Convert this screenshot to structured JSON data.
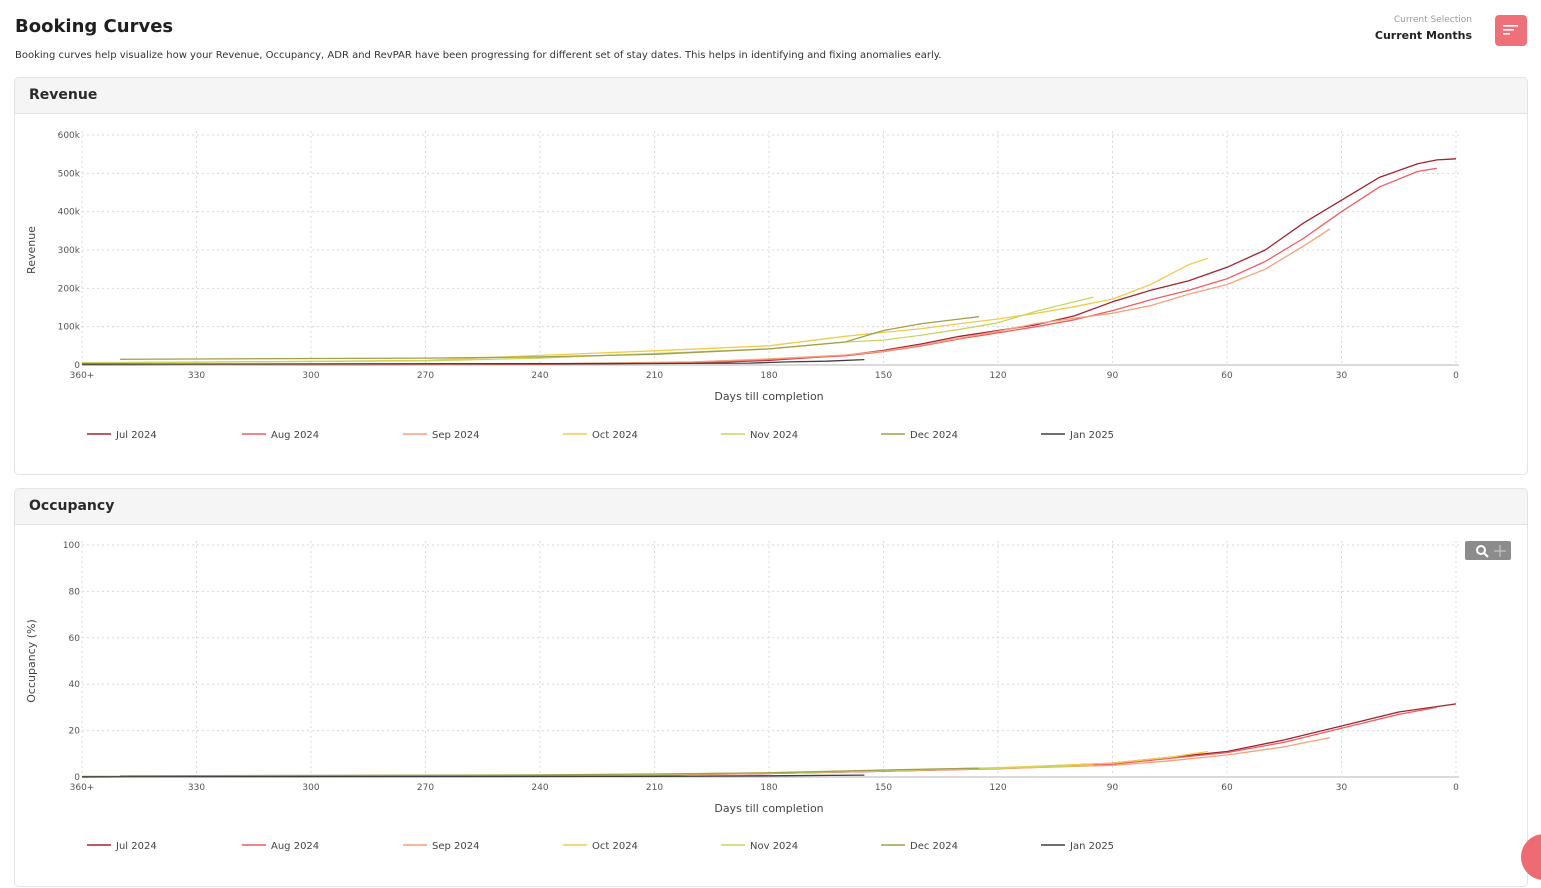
{
  "page": {
    "title": "Booking Curves",
    "subtitle": "Booking curves help visualize how your Revenue, Occupancy, ADR and RevPAR have been progressing for different set of stay dates. This helps in identifying and fixing anomalies early.",
    "selection_label": "Current Selection",
    "selection_value": "Current Months",
    "filter_icon": "filter-lines-icon"
  },
  "colors": {
    "Jul 2024": "#a3222e",
    "Aug 2024": "#ee5d63",
    "Sep 2024": "#f7a07a",
    "Oct 2024": "#f2cb4c",
    "Nov 2024": "#c7d560",
    "Dec 2024": "#9ea04a",
    "Jan 2025": "#3f3f3f"
  },
  "chart_data": [
    {
      "type": "line",
      "panel_title": "Revenue",
      "xlabel": "Days till completion",
      "ylabel": "Revenue",
      "x_ticks": [
        "360+",
        "330",
        "300",
        "270",
        "240",
        "210",
        "180",
        "150",
        "120",
        "90",
        "60",
        "30",
        "0"
      ],
      "y_ticks": [
        "0",
        "100k",
        "200k",
        "300k",
        "400k",
        "500k",
        "600k"
      ],
      "xlim": [
        360,
        0
      ],
      "ylim": [
        0,
        600000
      ],
      "grid": true,
      "legend_position": "bottom",
      "series": [
        {
          "name": "Jul 2024",
          "x": [
            360,
            240,
            200,
            180,
            160,
            150,
            140,
            130,
            120,
            110,
            100,
            90,
            80,
            70,
            60,
            50,
            40,
            30,
            20,
            10,
            5,
            0
          ],
          "y": [
            0,
            2000,
            5000,
            12000,
            25000,
            38000,
            55000,
            75000,
            90000,
            105000,
            128000,
            165000,
            195000,
            220000,
            255000,
            300000,
            370000,
            430000,
            490000,
            525000,
            535000,
            538000
          ]
        },
        {
          "name": "Aug 2024",
          "x": [
            360,
            240,
            200,
            180,
            160,
            150,
            140,
            130,
            120,
            110,
            100,
            90,
            80,
            70,
            60,
            50,
            40,
            30,
            20,
            10,
            5
          ],
          "y": [
            0,
            2000,
            6000,
            14000,
            24000,
            35000,
            50000,
            68000,
            84000,
            100000,
            118000,
            142000,
            170000,
            195000,
            225000,
            270000,
            330000,
            400000,
            465000,
            505000,
            513000
          ]
        },
        {
          "name": "Sep 2024",
          "x": [
            360,
            240,
            200,
            180,
            160,
            150,
            140,
            130,
            120,
            110,
            100,
            90,
            80,
            70,
            60,
            50,
            40,
            33
          ],
          "y": [
            0,
            3000,
            8000,
            16000,
            26000,
            36000,
            52000,
            70000,
            88000,
            108000,
            122000,
            135000,
            155000,
            185000,
            210000,
            250000,
            310000,
            355000
          ]
        },
        {
          "name": "Oct 2024",
          "x": [
            360,
            270,
            240,
            210,
            180,
            160,
            150,
            140,
            130,
            120,
            110,
            100,
            90,
            80,
            70,
            65
          ],
          "y": [
            5000,
            12000,
            25000,
            37000,
            50000,
            75000,
            85000,
            95000,
            108000,
            120000,
            135000,
            152000,
            172000,
            210000,
            262000,
            278000
          ]
        },
        {
          "name": "Nov 2024",
          "x": [
            360,
            270,
            240,
            210,
            180,
            160,
            150,
            140,
            130,
            120,
            110,
            100,
            95
          ],
          "y": [
            6000,
            11000,
            18000,
            30000,
            42000,
            60000,
            65000,
            78000,
            93000,
            110000,
            140000,
            165000,
            177000
          ]
        },
        {
          "name": "Dec 2024",
          "x": [
            350,
            270,
            240,
            210,
            180,
            160,
            150,
            140,
            130,
            125
          ],
          "y": [
            15000,
            18000,
            21000,
            28000,
            42000,
            60000,
            90000,
            108000,
            120000,
            126000
          ]
        },
        {
          "name": "Jan 2025",
          "x": [
            360,
            210,
            185,
            175,
            165,
            155
          ],
          "y": [
            2000,
            4000,
            5000,
            8000,
            10000,
            14000
          ]
        }
      ]
    },
    {
      "type": "line",
      "panel_title": "Occupancy",
      "xlabel": "Days till completion",
      "ylabel": "Occupancy (%)",
      "x_ticks": [
        "360+",
        "330",
        "300",
        "270",
        "240",
        "210",
        "180",
        "150",
        "120",
        "90",
        "60",
        "30",
        "0"
      ],
      "y_ticks": [
        "0",
        "20",
        "40",
        "60",
        "80",
        "100"
      ],
      "xlim": [
        360,
        0
      ],
      "ylim": [
        0,
        100
      ],
      "grid": true,
      "legend_position": "bottom",
      "series": [
        {
          "name": "Jul 2024",
          "x": [
            360,
            240,
            210,
            180,
            150,
            120,
            90,
            75,
            60,
            45,
            30,
            15,
            0
          ],
          "y": [
            0,
            0.5,
            1,
            1.5,
            2.5,
            3.8,
            6,
            8.5,
            11,
            16,
            22,
            28,
            31.5
          ]
        },
        {
          "name": "Aug 2024",
          "x": [
            360,
            240,
            210,
            180,
            150,
            120,
            90,
            75,
            60,
            45,
            30,
            15,
            5
          ],
          "y": [
            0,
            0.5,
            1,
            1.5,
            2.5,
            3.5,
            5.5,
            8,
            10.5,
            15,
            21,
            27,
            30
          ]
        },
        {
          "name": "Sep 2024",
          "x": [
            360,
            240,
            210,
            180,
            150,
            120,
            90,
            75,
            60,
            45,
            33
          ],
          "y": [
            0,
            0.5,
            1,
            1.6,
            2.6,
            3.6,
            5,
            7,
            9.5,
            13,
            17
          ]
        },
        {
          "name": "Oct 2024",
          "x": [
            360,
            240,
            210,
            180,
            150,
            120,
            90,
            75,
            65
          ],
          "y": [
            0.3,
            0.8,
            1.2,
            1.8,
            2.8,
            4,
            6,
            8.5,
            11
          ]
        },
        {
          "name": "Nov 2024",
          "x": [
            360,
            240,
            210,
            180,
            150,
            120,
            95
          ],
          "y": [
            0.3,
            0.8,
            1.2,
            1.7,
            2.7,
            3.8,
            5
          ]
        },
        {
          "name": "Dec 2024",
          "x": [
            350,
            240,
            210,
            180,
            150,
            125
          ],
          "y": [
            0.5,
            0.9,
            1.3,
            1.8,
            3,
            3.8
          ]
        },
        {
          "name": "Jan 2025",
          "x": [
            360,
            210,
            180,
            155
          ],
          "y": [
            0.1,
            0.3,
            0.5,
            0.8
          ]
        }
      ]
    }
  ]
}
